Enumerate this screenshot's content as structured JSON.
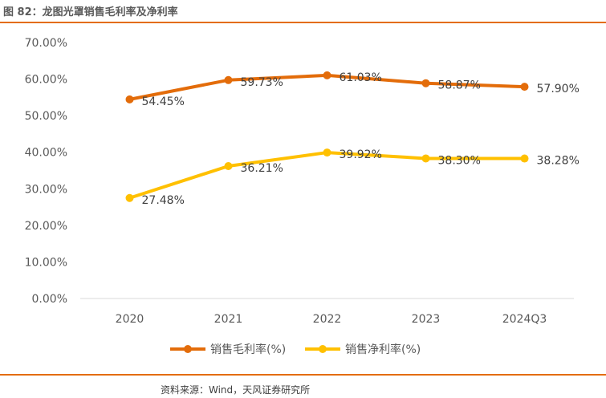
{
  "figure_title": "图 82：龙图光罩销售毛利率及净利率",
  "source": "资料来源：Wind，天风证券研究所",
  "chart_data": {
    "type": "line",
    "title": "龙图光罩销售毛利率及净利率",
    "categories": [
      "2020",
      "2021",
      "2022",
      "2023",
      "2024Q3"
    ],
    "ylim": [
      0,
      70
    ],
    "yticks": [
      0,
      10,
      20,
      30,
      40,
      50,
      60,
      70
    ],
    "ytick_labels": [
      "0.00%",
      "10.00%",
      "20.00%",
      "30.00%",
      "40.00%",
      "50.00%",
      "60.00%",
      "70.00%"
    ],
    "xlabel": "",
    "ylabel": "",
    "grid": false,
    "legend_position": "bottom",
    "series": [
      {
        "name": "销售毛利率(%)",
        "color": "#e36c0a",
        "values": [
          54.45,
          59.73,
          61.03,
          58.87,
          57.9
        ],
        "labels": [
          "54.45%",
          "59.73%",
          "61.03%",
          "58.87%",
          "57.90%"
        ]
      },
      {
        "name": "销售净利率(%)",
        "color": "#ffc000",
        "values": [
          27.48,
          36.21,
          39.92,
          38.3,
          38.28
        ],
        "labels": [
          "27.48%",
          "36.21%",
          "39.92%",
          "38.30%",
          "38.28%"
        ]
      }
    ]
  }
}
